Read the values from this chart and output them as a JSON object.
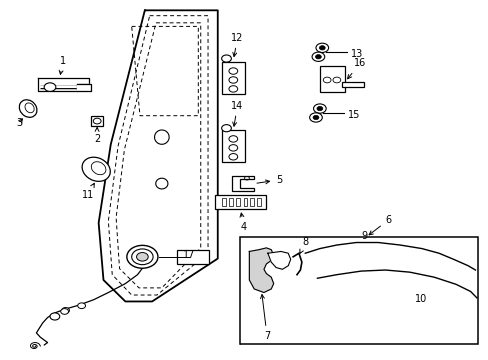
{
  "bg_color": "#ffffff",
  "fig_width": 4.89,
  "fig_height": 3.6,
  "dpi": 100,
  "door_outer": {
    "x": [
      0.295,
      0.445,
      0.445,
      0.31,
      0.255,
      0.21,
      0.2,
      0.225,
      0.295
    ],
    "y": [
      0.975,
      0.975,
      0.28,
      0.16,
      0.16,
      0.22,
      0.38,
      0.6,
      0.975
    ]
  },
  "door_inner1": {
    "x": [
      0.305,
      0.425,
      0.425,
      0.32,
      0.268,
      0.228,
      0.22,
      0.24,
      0.305
    ],
    "y": [
      0.96,
      0.96,
      0.295,
      0.178,
      0.178,
      0.235,
      0.385,
      0.595,
      0.96
    ]
  },
  "door_inner2": {
    "x": [
      0.318,
      0.41,
      0.41,
      0.33,
      0.283,
      0.243,
      0.236,
      0.253,
      0.318
    ],
    "y": [
      0.94,
      0.94,
      0.31,
      0.198,
      0.198,
      0.252,
      0.395,
      0.585,
      0.94
    ]
  }
}
